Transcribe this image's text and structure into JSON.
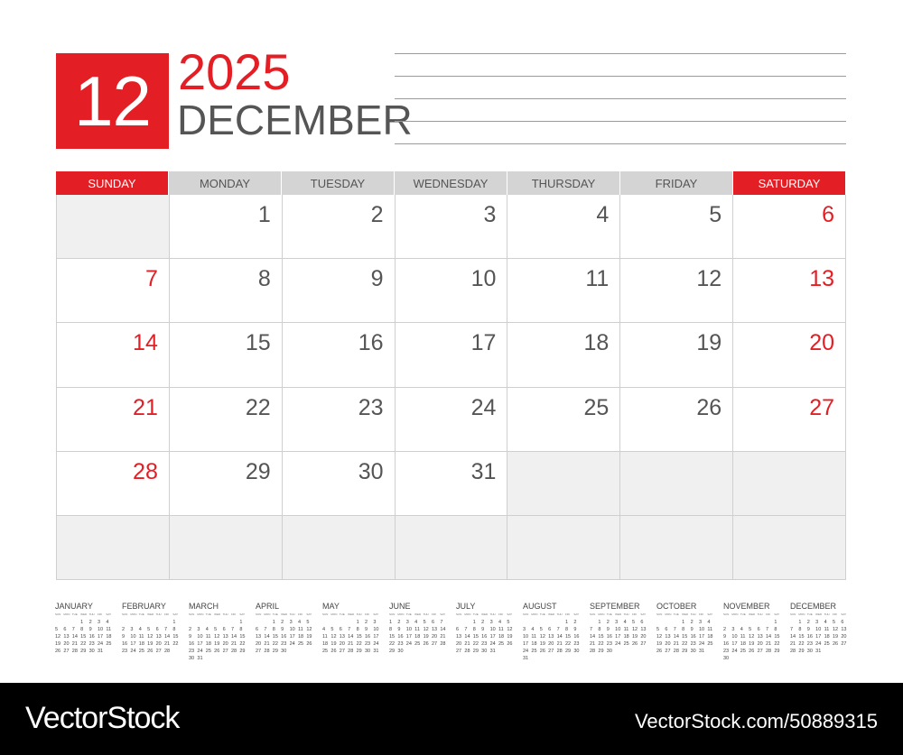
{
  "header": {
    "month_number": "12",
    "year": "2025",
    "month_name": "DECEMBER"
  },
  "weekdays": [
    "SUNDAY",
    "MONDAY",
    "TUESDAY",
    "WEDNESDAY",
    "THURSDAY",
    "FRIDAY",
    "SATURDAY"
  ],
  "colors": {
    "accent": "#e31e24",
    "text": "#555555",
    "header_gray": "#d4d4d4",
    "empty_cell": "#f0f0f0"
  },
  "weeks": [
    [
      null,
      1,
      2,
      3,
      4,
      5,
      6
    ],
    [
      7,
      8,
      9,
      10,
      11,
      12,
      13
    ],
    [
      14,
      15,
      16,
      17,
      18,
      19,
      20
    ],
    [
      21,
      22,
      23,
      24,
      25,
      26,
      27
    ],
    [
      28,
      29,
      30,
      31,
      null,
      null,
      null
    ],
    [
      null,
      null,
      null,
      null,
      null,
      null,
      null
    ]
  ],
  "mini_weekdays": [
    "SUN",
    "MON",
    "TUE",
    "WED",
    "THU",
    "FRI",
    "SAT"
  ],
  "mini_months": [
    {
      "name": "JANUARY",
      "weeks": [
        [
          null,
          null,
          null,
          1,
          2,
          3,
          4
        ],
        [
          5,
          6,
          7,
          8,
          9,
          10,
          11
        ],
        [
          12,
          13,
          14,
          15,
          16,
          17,
          18
        ],
        [
          19,
          20,
          21,
          22,
          23,
          24,
          25
        ],
        [
          26,
          27,
          28,
          29,
          30,
          31,
          null
        ]
      ]
    },
    {
      "name": "FEBRUARY",
      "weeks": [
        [
          null,
          null,
          null,
          null,
          null,
          null,
          1
        ],
        [
          2,
          3,
          4,
          5,
          6,
          7,
          8
        ],
        [
          9,
          10,
          11,
          12,
          13,
          14,
          15
        ],
        [
          16,
          17,
          18,
          19,
          20,
          21,
          22
        ],
        [
          23,
          24,
          25,
          26,
          27,
          28,
          null
        ]
      ]
    },
    {
      "name": "MARCH",
      "weeks": [
        [
          null,
          null,
          null,
          null,
          null,
          null,
          1
        ],
        [
          2,
          3,
          4,
          5,
          6,
          7,
          8
        ],
        [
          9,
          10,
          11,
          12,
          13,
          14,
          15
        ],
        [
          16,
          17,
          18,
          19,
          20,
          21,
          22
        ],
        [
          23,
          24,
          25,
          26,
          27,
          28,
          29
        ],
        [
          30,
          31
        ]
      ]
    },
    {
      "name": "APRIL",
      "weeks": [
        [
          null,
          null,
          1,
          2,
          3,
          4,
          5
        ],
        [
          6,
          7,
          8,
          9,
          10,
          11,
          12
        ],
        [
          13,
          14,
          15,
          16,
          17,
          18,
          19
        ],
        [
          20,
          21,
          22,
          23,
          24,
          25,
          26
        ],
        [
          27,
          28,
          29,
          30
        ]
      ]
    },
    {
      "name": "MAY",
      "weeks": [
        [
          null,
          null,
          null,
          null,
          1,
          2,
          3
        ],
        [
          4,
          5,
          6,
          7,
          8,
          9,
          10
        ],
        [
          11,
          12,
          13,
          14,
          15,
          16,
          17
        ],
        [
          18,
          19,
          20,
          21,
          22,
          23,
          24
        ],
        [
          25,
          26,
          27,
          28,
          29,
          30,
          31
        ]
      ]
    },
    {
      "name": "JUNE",
      "weeks": [
        [
          1,
          2,
          3,
          4,
          5,
          6,
          7
        ],
        [
          8,
          9,
          10,
          11,
          12,
          13,
          14
        ],
        [
          15,
          16,
          17,
          18,
          19,
          20,
          21
        ],
        [
          22,
          23,
          24,
          25,
          26,
          27,
          28
        ],
        [
          29,
          30
        ]
      ]
    },
    {
      "name": "JULY",
      "weeks": [
        [
          null,
          null,
          1,
          2,
          3,
          4,
          5
        ],
        [
          6,
          7,
          8,
          9,
          10,
          11,
          12
        ],
        [
          13,
          14,
          15,
          16,
          17,
          18,
          19
        ],
        [
          20,
          21,
          22,
          23,
          24,
          25,
          26
        ],
        [
          27,
          28,
          29,
          30,
          31
        ]
      ]
    },
    {
      "name": "AUGUST",
      "weeks": [
        [
          null,
          null,
          null,
          null,
          null,
          1,
          2
        ],
        [
          3,
          4,
          5,
          6,
          7,
          8,
          9
        ],
        [
          10,
          11,
          12,
          13,
          14,
          15,
          16
        ],
        [
          17,
          18,
          19,
          20,
          21,
          22,
          23
        ],
        [
          24,
          25,
          26,
          27,
          28,
          29,
          30
        ],
        [
          31
        ]
      ]
    },
    {
      "name": "SEPTEMBER",
      "weeks": [
        [
          null,
          1,
          2,
          3,
          4,
          5,
          6
        ],
        [
          7,
          8,
          9,
          10,
          11,
          12,
          13
        ],
        [
          14,
          15,
          16,
          17,
          18,
          19,
          20
        ],
        [
          21,
          22,
          23,
          24,
          25,
          26,
          27
        ],
        [
          28,
          29,
          30
        ]
      ]
    },
    {
      "name": "OCTOBER",
      "weeks": [
        [
          null,
          null,
          null,
          1,
          2,
          3,
          4
        ],
        [
          5,
          6,
          7,
          8,
          9,
          10,
          11
        ],
        [
          12,
          13,
          14,
          15,
          16,
          17,
          18
        ],
        [
          19,
          20,
          21,
          22,
          23,
          24,
          25
        ],
        [
          26,
          27,
          28,
          29,
          30,
          31
        ]
      ]
    },
    {
      "name": "NOVEMBER",
      "weeks": [
        [
          null,
          null,
          null,
          null,
          null,
          null,
          1
        ],
        [
          2,
          3,
          4,
          5,
          6,
          7,
          8
        ],
        [
          9,
          10,
          11,
          12,
          13,
          14,
          15
        ],
        [
          16,
          17,
          18,
          19,
          20,
          21,
          22
        ],
        [
          23,
          24,
          25,
          26,
          27,
          28,
          29
        ],
        [
          30
        ]
      ]
    },
    {
      "name": "DECEMBER",
      "weeks": [
        [
          null,
          1,
          2,
          3,
          4,
          5,
          6
        ],
        [
          7,
          8,
          9,
          10,
          11,
          12,
          13
        ],
        [
          14,
          15,
          16,
          17,
          18,
          19,
          20
        ],
        [
          21,
          22,
          23,
          24,
          25,
          26,
          27
        ],
        [
          28,
          29,
          30,
          31
        ]
      ]
    }
  ],
  "footer": {
    "logo": "VectorStock",
    "url": "VectorStock.com/50889315"
  }
}
